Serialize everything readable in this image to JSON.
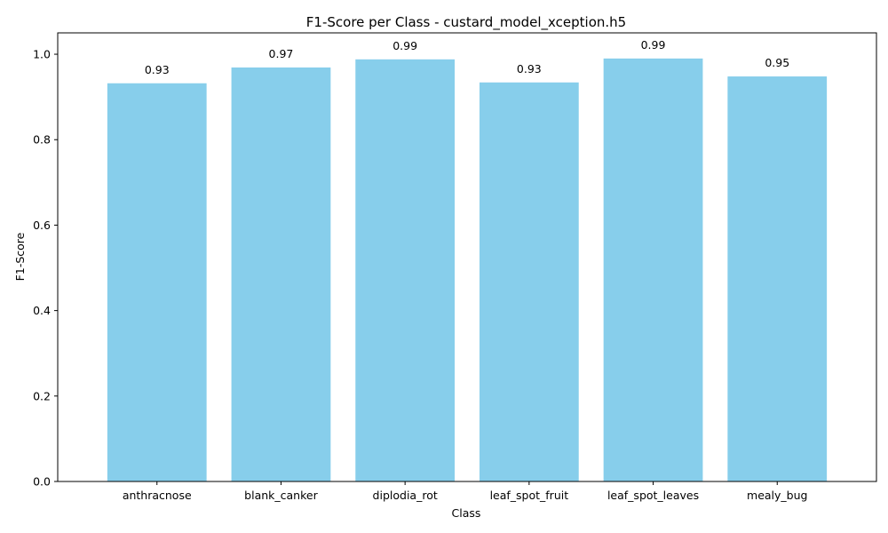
{
  "chart_data": {
    "type": "bar",
    "title": "F1-Score per Class - custard_model_xception.h5",
    "xlabel": "Class",
    "ylabel": "F1-Score",
    "categories": [
      "anthracnose",
      "blank_canker",
      "diplodia_rot",
      "leaf_spot_fruit",
      "leaf_spot_leaves",
      "mealy_bug"
    ],
    "values": [
      0.932,
      0.969,
      0.988,
      0.934,
      0.99,
      0.948
    ],
    "value_labels": [
      "0.93",
      "0.97",
      "0.99",
      "0.93",
      "0.99",
      "0.95"
    ],
    "ylim": [
      0,
      1.05
    ],
    "yticks": [
      0.0,
      0.2,
      0.4,
      0.6,
      0.8,
      1.0
    ],
    "ytick_labels": [
      "0.0",
      "0.2",
      "0.4",
      "0.6",
      "0.8",
      "1.0"
    ],
    "bar_color": "#87ceeb",
    "grid": false
  }
}
